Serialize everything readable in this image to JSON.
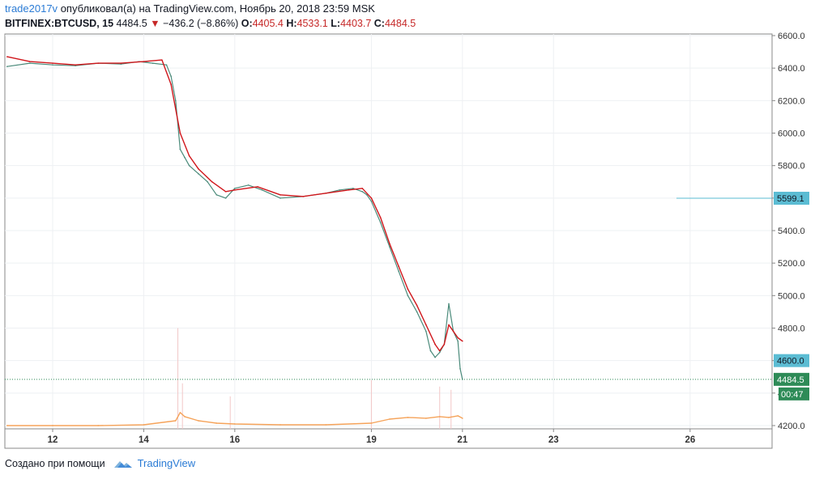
{
  "header": {
    "author": "trade2017v",
    "published_text": "опубликовал(а) на TradingView.com, Ноябрь 20, 2018 23:59 MSK",
    "symbol": "BITFINEX:BTCUSD, 15",
    "last_price": "4484.5",
    "change_arrow": "▼",
    "change": "−436.2 (−8.86%)",
    "ohlc": {
      "open_label": "O:",
      "open": "4405.4",
      "high_label": "H:",
      "high": "4533.1",
      "low_label": "L:",
      "low": "4403.7",
      "close_label": "C:",
      "close": "4484.5"
    }
  },
  "footer": {
    "created_with": "Создано при помощи",
    "brand": "TradingView"
  },
  "chart_data": {
    "type": "line",
    "title": "",
    "xlabel": "",
    "ylabel": "",
    "x_ticks": [
      "12",
      "14",
      "16",
      "19",
      "21",
      "23",
      "26"
    ],
    "y_ticks": [
      "6600.0",
      "6400.0",
      "6200.0",
      "6000.0",
      "5800.0",
      "5600.0",
      "5400.0",
      "5200.0",
      "5000.0",
      "4800.0",
      "4600.0",
      "4400.0",
      "4200.0"
    ],
    "ylim": [
      4180,
      6610
    ],
    "grid": true,
    "x_unit": "day of November 2018",
    "x_range": [
      10.95,
      27.8
    ],
    "series": [
      {
        "color": "#4a8a7a",
        "x": [
          11.0,
          11.5,
          12.0,
          12.5,
          13.0,
          13.5,
          13.9,
          14.2,
          14.5,
          14.6,
          14.7,
          14.8,
          14.9,
          15.0,
          15.2,
          15.4,
          15.6,
          15.8,
          16.0,
          16.3,
          16.6,
          17.0,
          17.5,
          18.0,
          18.3,
          18.6,
          18.8,
          18.9,
          19.0,
          19.2,
          19.4,
          19.6,
          19.8,
          20.0,
          20.2,
          20.3,
          20.4,
          20.5,
          20.6,
          20.7,
          20.8,
          20.9,
          20.95,
          21.0
        ],
        "values": [
          6410,
          6430,
          6420,
          6415,
          6430,
          6425,
          6440,
          6430,
          6420,
          6350,
          6200,
          5900,
          5850,
          5800,
          5750,
          5700,
          5620,
          5600,
          5660,
          5680,
          5650,
          5600,
          5610,
          5630,
          5650,
          5660,
          5640,
          5620,
          5580,
          5450,
          5300,
          5150,
          5000,
          4900,
          4780,
          4660,
          4620,
          4650,
          4700,
          4950,
          4780,
          4720,
          4550,
          4484.5
        ]
      },
      {
        "color": "#d0161b",
        "x": [
          11.0,
          11.5,
          12.0,
          12.5,
          13.0,
          13.5,
          14.0,
          14.4,
          14.6,
          14.8,
          15.0,
          15.2,
          15.5,
          15.8,
          16.0,
          16.5,
          17.0,
          17.5,
          18.0,
          18.5,
          18.8,
          19.0,
          19.2,
          19.4,
          19.6,
          19.8,
          20.0,
          20.2,
          20.4,
          20.5,
          20.6,
          20.7,
          20.8,
          20.9,
          21.0
        ],
        "values": [
          6470,
          6440,
          6430,
          6420,
          6430,
          6430,
          6440,
          6450,
          6300,
          6000,
          5860,
          5780,
          5700,
          5640,
          5650,
          5670,
          5620,
          5610,
          5630,
          5650,
          5660,
          5600,
          5480,
          5320,
          5180,
          5040,
          4940,
          4820,
          4700,
          4660,
          4700,
          4820,
          4780,
          4740,
          4720
        ]
      },
      {
        "color": "#f5a35a",
        "x": [
          11.0,
          12.0,
          13.0,
          14.0,
          14.7,
          14.8,
          14.9,
          15.2,
          15.6,
          16.0,
          17.0,
          18.0,
          19.0,
          19.4,
          19.8,
          20.2,
          20.5,
          20.7,
          20.9,
          21.0
        ],
        "values": [
          4200,
          4200,
          4200,
          4205,
          4230,
          4280,
          4255,
          4230,
          4215,
          4210,
          4205,
          4205,
          4215,
          4240,
          4250,
          4245,
          4255,
          4250,
          4260,
          4245
        ]
      }
    ],
    "volume_spikes": {
      "color": "#f2c7c7",
      "x": [
        14.75,
        14.85,
        15.9,
        19.0,
        20.5,
        20.75
      ],
      "values": [
        4800,
        4460,
        4380,
        4480,
        4440,
        4420
      ]
    },
    "price_lines": [
      {
        "value": 5599.1,
        "label": "5599.1",
        "color": "#5bbcd3",
        "start_x": 25.7
      },
      {
        "value": 4600.0,
        "label": "4600.0",
        "color": "#5bbcd3",
        "start_x": 27.8
      }
    ],
    "last_price": {
      "value": 4484.5,
      "label": "4484.5",
      "color": "#2e8b57",
      "countdown": "00:47"
    }
  }
}
